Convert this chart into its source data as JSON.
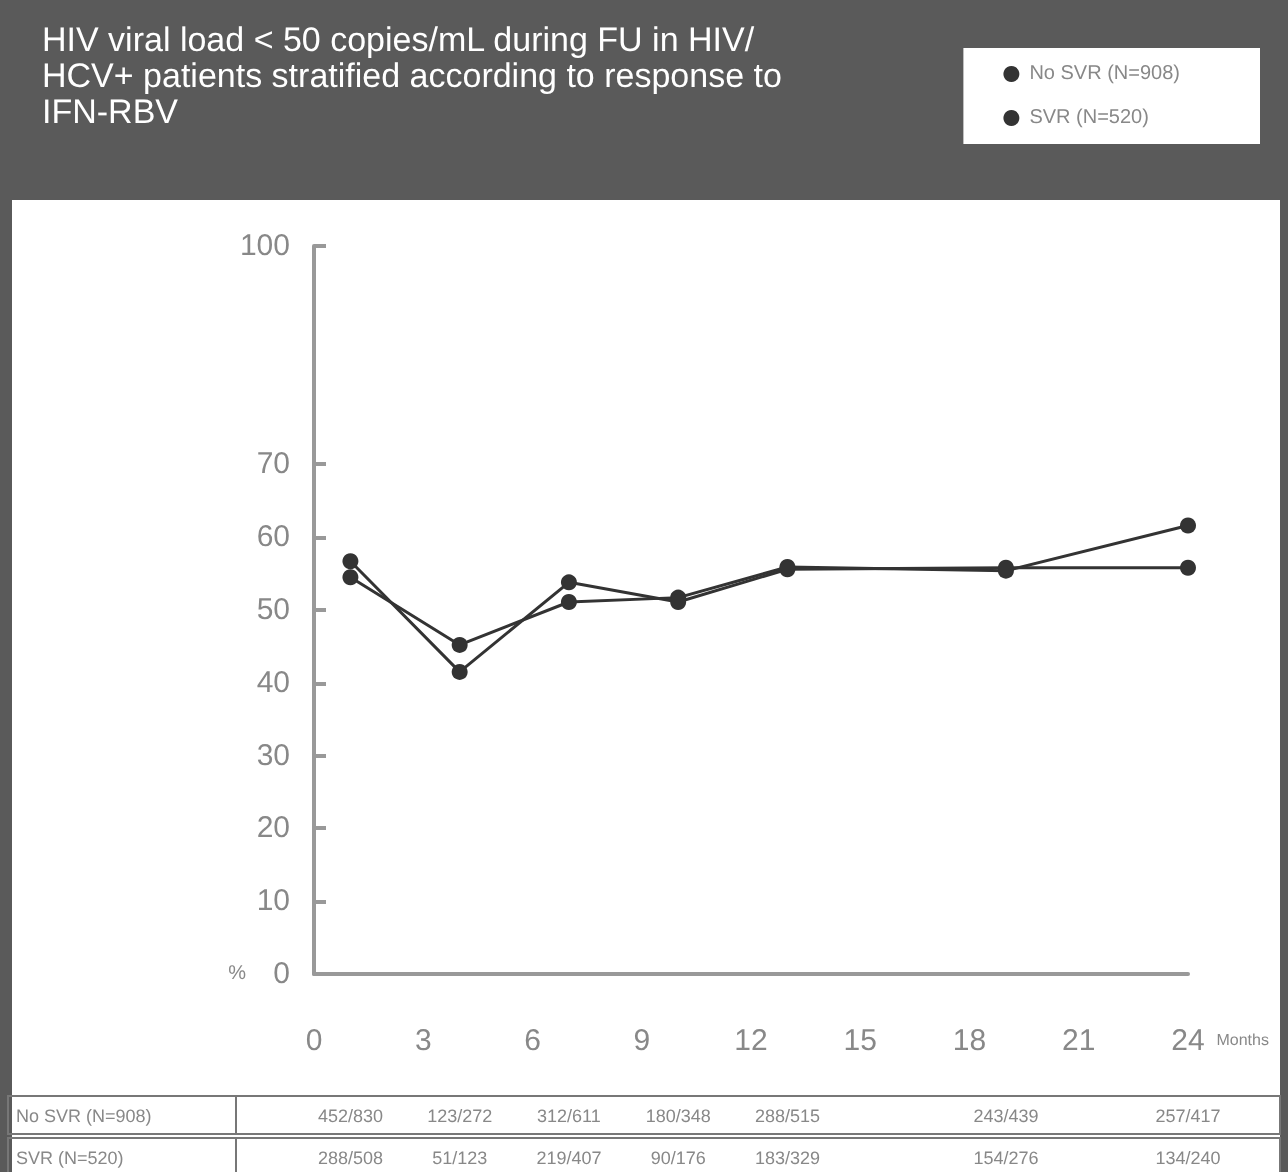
{
  "chart_data": {
    "type": "line",
    "title": "HIV viral load < 50 copies/mL during FU in HIV/HCV+ patients stratified according to response to IFN-RBV",
    "x": [
      1,
      4,
      7,
      10,
      13,
      19,
      24
    ],
    "series": [
      {
        "name": "No SVR (N=908)",
        "color": "#333333",
        "values": [
          54.5,
          45.2,
          51.1,
          51.7,
          55.9,
          55.4,
          61.6
        ]
      },
      {
        "name": "SVR (N=520)",
        "color": "#333333",
        "values": [
          56.7,
          41.5,
          53.8,
          51.1,
          55.6,
          55.8,
          55.8
        ]
      }
    ],
    "xlabel": "Months",
    "ylabel": "%",
    "xlim": [
      0,
      24
    ],
    "xticks": [
      0,
      3,
      6,
      9,
      12,
      15,
      18,
      21,
      24
    ],
    "ylim": [
      0,
      100
    ],
    "yticks": [
      0,
      10,
      20,
      30,
      40,
      50,
      60,
      70,
      100
    ],
    "annotations": [
      "No SVR (N=908)",
      "452/830",
      "123/272",
      "312/611",
      "180/348",
      "288/515",
      "243/439",
      "257/417",
      "SVR (N=520)",
      "288/508",
      "51/123",
      "219/407",
      "90/176",
      "183/329",
      "154/276",
      "134/240"
    ],
    "legend": "top right",
    "marker": "circle",
    "line_style": "solid",
    "grid": false
  }
}
